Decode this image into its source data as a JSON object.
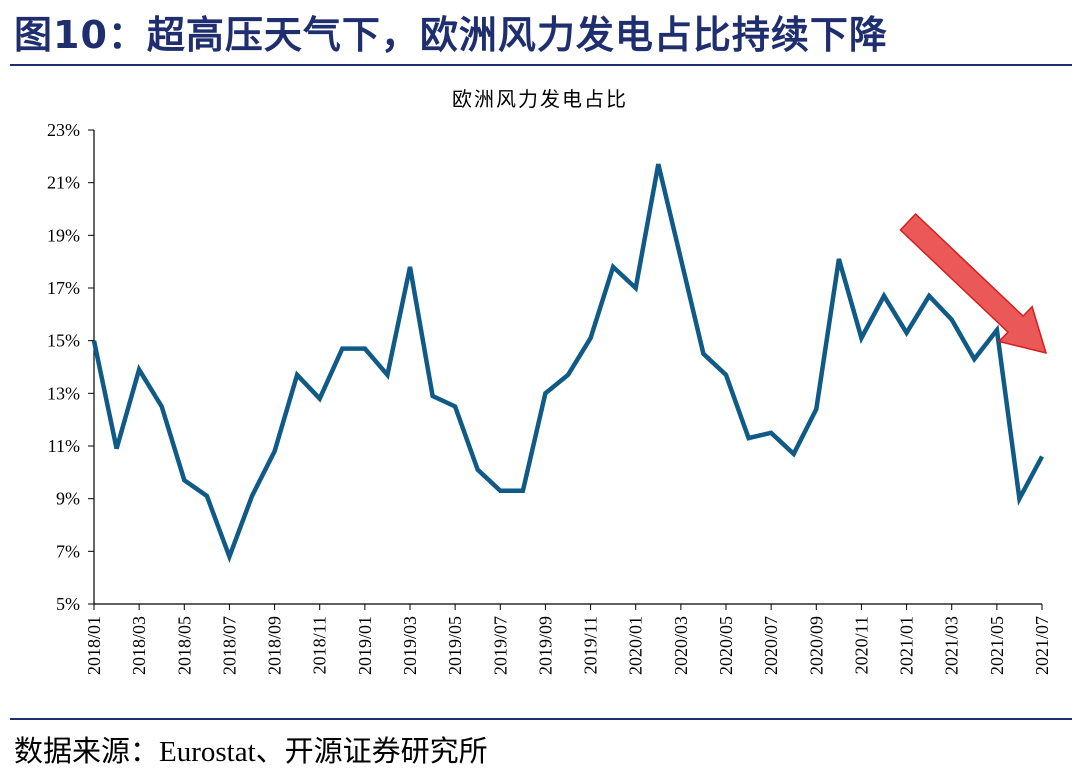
{
  "heading": "图10：超高压天气下，欧洲风力发电占比持续下降",
  "source": "数据来源：Eurostat、开源证券研究所",
  "colors": {
    "line": "#0f5a86",
    "arrow": "#e83b3b",
    "heading": "#1f2e6e"
  },
  "chart_data": {
    "type": "line",
    "title": "欧洲风力发电占比",
    "xlabel": "",
    "ylabel": "",
    "ylim": [
      5,
      23
    ],
    "yticks": [
      "5%",
      "7%",
      "9%",
      "11%",
      "13%",
      "15%",
      "17%",
      "19%",
      "21%",
      "23%"
    ],
    "x": [
      "2018/01",
      "2018/02",
      "2018/03",
      "2018/04",
      "2018/05",
      "2018/06",
      "2018/07",
      "2018/08",
      "2018/09",
      "2018/10",
      "2018/11",
      "2018/12",
      "2019/01",
      "2019/02",
      "2019/03",
      "2019/04",
      "2019/05",
      "2019/06",
      "2019/07",
      "2019/08",
      "2019/09",
      "2019/10",
      "2019/11",
      "2019/12",
      "2020/01",
      "2020/02",
      "2020/03",
      "2020/04",
      "2020/05",
      "2020/06",
      "2020/07",
      "2020/08",
      "2020/09",
      "2020/10",
      "2020/11",
      "2020/12",
      "2021/01",
      "2021/02",
      "2021/03",
      "2021/04",
      "2021/05",
      "2021/06",
      "2021/07"
    ],
    "xtick_labels": [
      "2018/01",
      "2018/03",
      "2018/05",
      "2018/07",
      "2018/09",
      "2018/11",
      "2019/01",
      "2019/03",
      "2019/05",
      "2019/07",
      "2019/09",
      "2019/11",
      "2020/01",
      "2020/03",
      "2020/05",
      "2020/07",
      "2020/09",
      "2020/11",
      "2021/01",
      "2021/03",
      "2021/05",
      "2021/07"
    ],
    "series": [
      {
        "values": [
          15.0,
          10.9,
          13.9,
          12.5,
          9.7,
          9.1,
          6.8,
          9.1,
          10.8,
          13.7,
          12.8,
          14.7,
          14.7,
          13.7,
          17.8,
          12.9,
          12.5,
          10.1,
          9.3,
          9.3,
          13.0,
          13.7,
          15.1,
          17.8,
          17.0,
          21.7,
          18.1,
          14.5,
          13.7,
          11.3,
          11.5,
          10.7,
          12.4,
          18.1,
          15.1,
          16.7,
          15.3,
          16.7,
          15.8,
          14.3,
          15.4,
          9.0,
          10.6
        ]
      }
    ],
    "annotation": "down-arrow"
  }
}
